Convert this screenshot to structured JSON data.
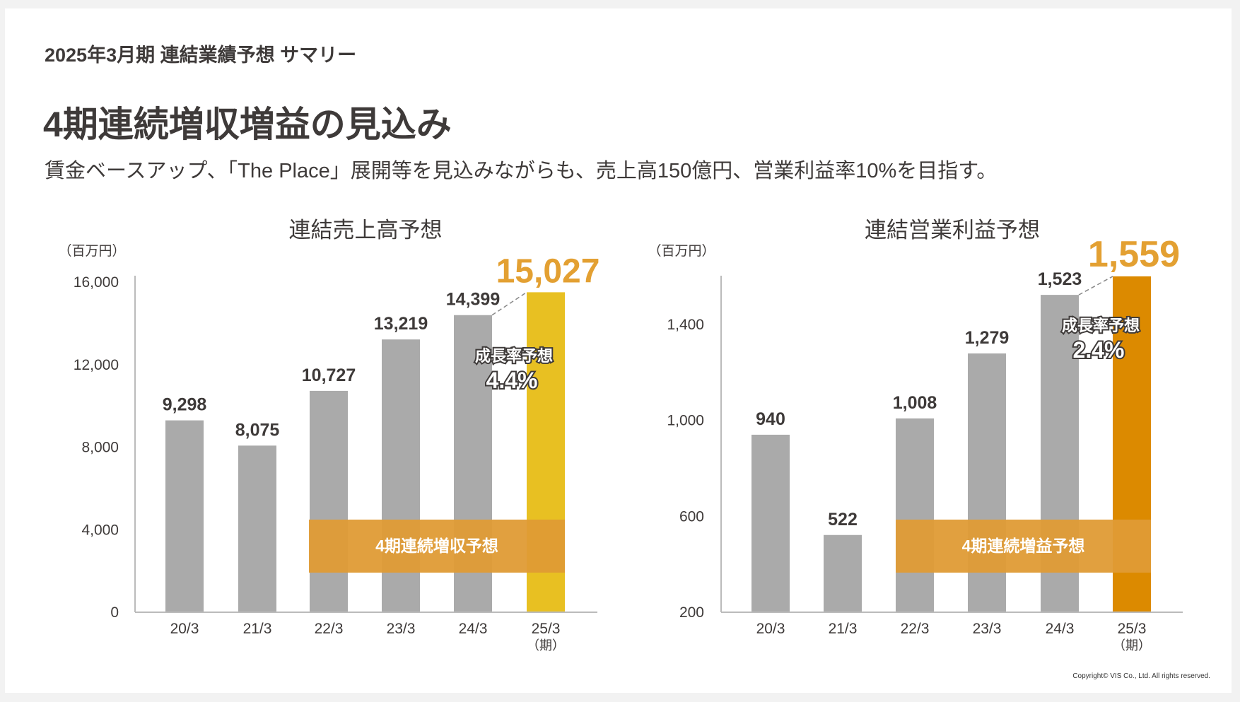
{
  "header": {
    "section": "2025年3月期 連結業績予想 サマリー",
    "title": "4期連続増収増益の見込み",
    "subtitle": "賃金ベースアップ、「The Place」展開等を見込みながらも、売上高150億円、営業利益率10%を目指す。"
  },
  "footer": {
    "copyright": "Copyright© VIS Co., Ltd. All rights reserved."
  },
  "chart_data": [
    {
      "type": "bar",
      "title": "連結売上高予想",
      "unit": "（百万円）",
      "categories": [
        "20/3",
        "21/3",
        "22/3",
        "23/3",
        "24/3",
        "25/3"
      ],
      "category_note": "（期）",
      "values": [
        9298,
        8075,
        10727,
        13219,
        14399,
        15027
      ],
      "labels": [
        "9,298",
        "8,075",
        "10,727",
        "13,219",
        "14,399",
        "15,027"
      ],
      "yticks": [
        0,
        4000,
        8000,
        12000,
        16000
      ],
      "ytick_labels": [
        "0",
        "4,000",
        "8,000",
        "12,000",
        "16,000"
      ],
      "ylim": [
        0,
        16000
      ],
      "banner": "4期連続増収予想",
      "growth_label": "成長率予想",
      "growth_value": "4.4%",
      "colors": {
        "bar": "#aaaaaa",
        "forecast": "#e8c022",
        "forecast_label": "#e3a032",
        "banner": "#df9b35"
      }
    },
    {
      "type": "bar",
      "title": "連結営業利益予想",
      "unit": "（百万円）",
      "categories": [
        "20/3",
        "21/3",
        "22/3",
        "23/3",
        "24/3",
        "25/3"
      ],
      "category_note": "（期）",
      "values": [
        940,
        522,
        1008,
        1279,
        1523,
        1559
      ],
      "labels": [
        "940",
        "522",
        "1,008",
        "1,279",
        "1,523",
        "1,559"
      ],
      "yticks": [
        200,
        600,
        1000,
        1400
      ],
      "ytick_labels": [
        "200",
        "600",
        "1,000",
        "1,400"
      ],
      "ylim": [
        200,
        1600
      ],
      "banner": "4期連続増益予想",
      "growth_label": "成長率予想",
      "growth_value": "2.4%",
      "colors": {
        "bar": "#aaaaaa",
        "forecast": "#dc8a00",
        "forecast_label": "#e3a032",
        "banner": "#df9b35"
      }
    }
  ]
}
